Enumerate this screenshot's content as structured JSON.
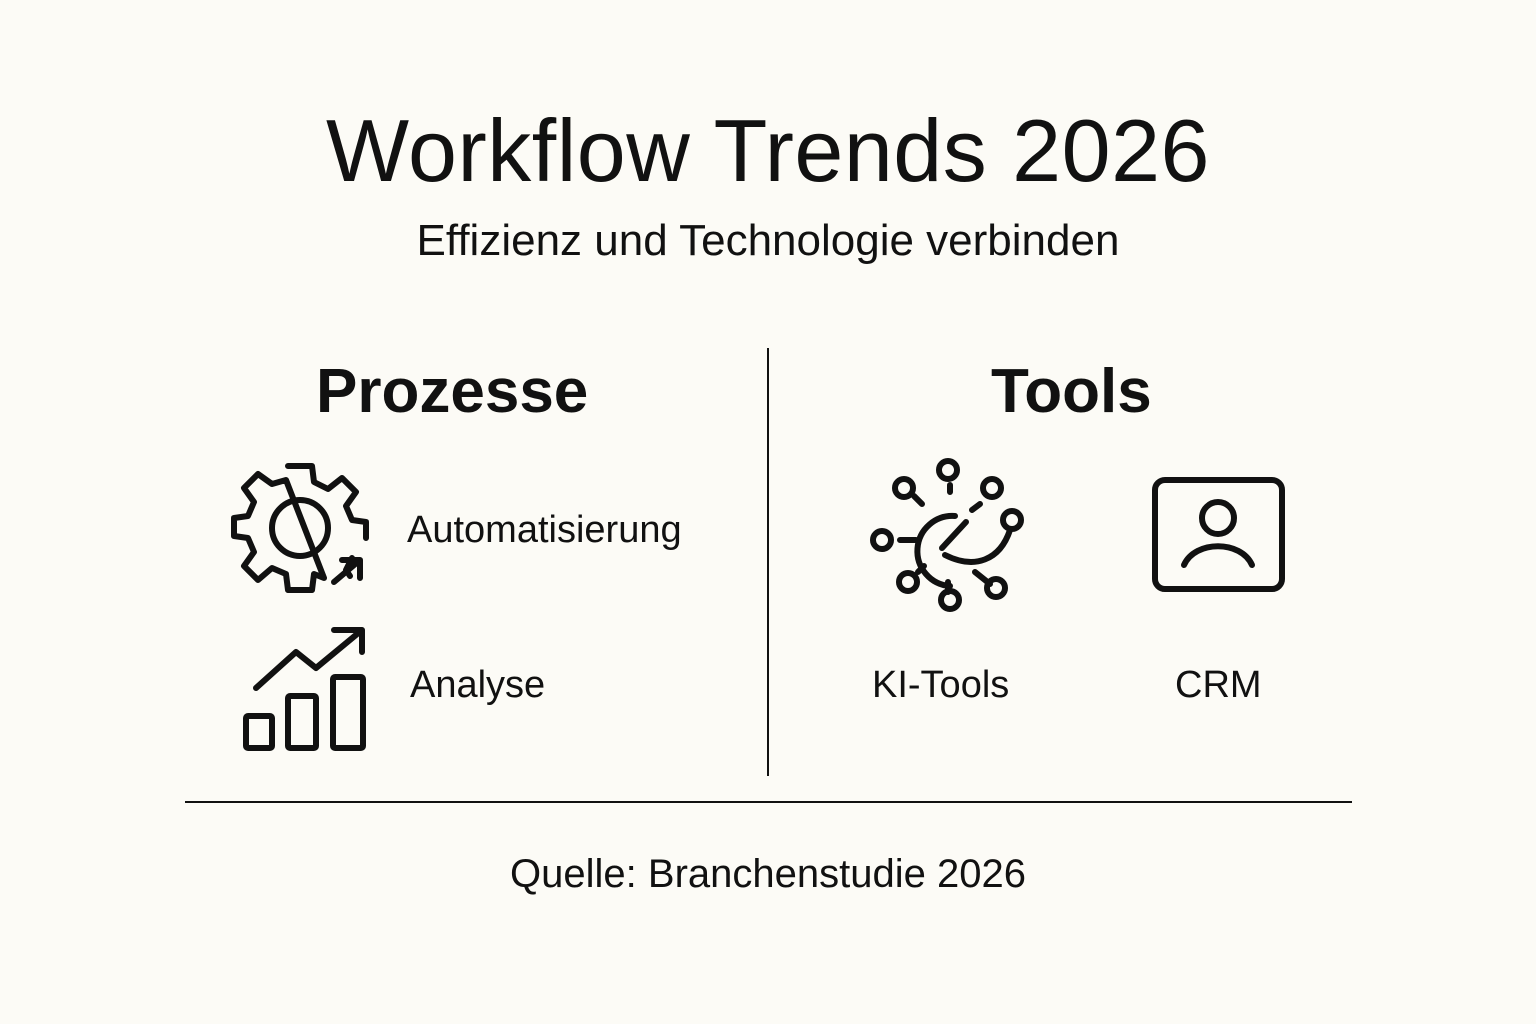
{
  "header": {
    "title": "Workflow Trends 2026",
    "subtitle": "Effizienz und Technologie verbinden"
  },
  "left": {
    "heading": "Prozesse",
    "items": [
      {
        "label": "Automatisierung",
        "icon": "gear-arrow-icon"
      },
      {
        "label": "Analyse",
        "icon": "bar-chart-trend-icon"
      }
    ]
  },
  "right": {
    "heading": "Tools",
    "items": [
      {
        "label": "KI-Tools",
        "icon": "ai-network-icon"
      },
      {
        "label": "CRM",
        "icon": "user-profile-icon"
      }
    ]
  },
  "footer": {
    "source": "Quelle: Branchenstudie 2026"
  }
}
